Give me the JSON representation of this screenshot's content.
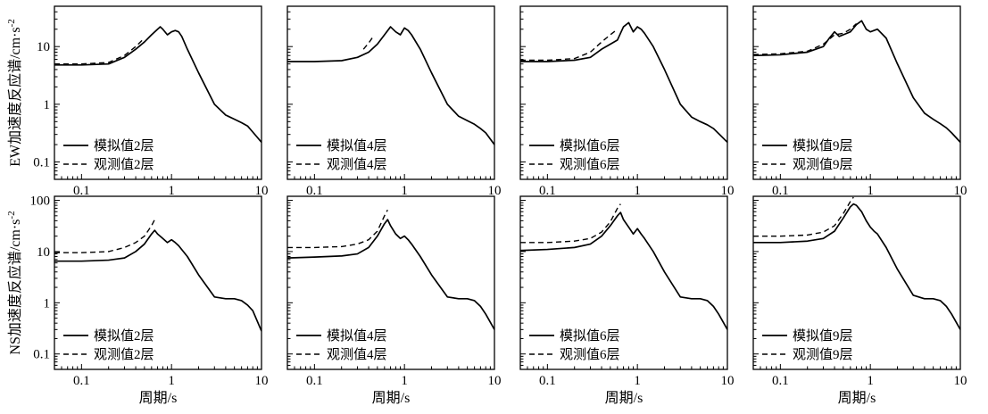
{
  "chart_data": {
    "type": "line",
    "x_scale": "log",
    "y_scale": "log",
    "xlim": [
      0.05,
      10
    ],
    "x_ticks": [
      {
        "value": 0.1,
        "label": "0.1"
      },
      {
        "value": 1,
        "label": "1"
      },
      {
        "value": 10,
        "label": "10"
      }
    ],
    "xlabel": "周期/s",
    "rows": [
      {
        "ylabel": "EW加速度反应谱/cm·s",
        "ylabel_sup": "-2",
        "ylim": [
          0.05,
          50
        ],
        "y_ticks": [
          {
            "value": 0.1,
            "label": "0.1"
          },
          {
            "value": 1,
            "label": "1"
          },
          {
            "value": 10,
            "label": "10"
          }
        ],
        "panels": [
          {
            "legend": [
              "模拟值2层",
              "观测值2层"
            ],
            "series": [
              {
                "name": "模拟值2层",
                "style": "solid",
                "x": [
                  0.05,
                  0.1,
                  0.2,
                  0.3,
                  0.4,
                  0.5,
                  0.6,
                  0.7,
                  0.75,
                  0.8,
                  0.9,
                  1.0,
                  1.1,
                  1.2,
                  1.3,
                  1.5,
                  2,
                  3,
                  4,
                  5,
                  6,
                  7,
                  8,
                  10
                ],
                "y": [
                  4.8,
                  4.8,
                  5.0,
                  6.5,
                  9.0,
                  12,
                  16,
                  20,
                  22,
                  20,
                  16,
                  18,
                  19,
                  18,
                  15,
                  9,
                  3.5,
                  1.0,
                  0.65,
                  0.55,
                  0.48,
                  0.42,
                  0.33,
                  0.22
                ]
              },
              {
                "name": "观测值2层",
                "style": "dashed",
                "x": [
                  0.05,
                  0.1,
                  0.2,
                  0.3,
                  0.4,
                  0.5
                ],
                "y": [
                  5.0,
                  5.0,
                  5.3,
                  7.0,
                  10,
                  14
                ]
              }
            ]
          },
          {
            "legend": [
              "模拟值4层",
              "观测值4层"
            ],
            "series": [
              {
                "name": "模拟值4层",
                "style": "solid",
                "x": [
                  0.05,
                  0.1,
                  0.2,
                  0.3,
                  0.4,
                  0.5,
                  0.6,
                  0.7,
                  0.8,
                  0.9,
                  1.0,
                  1.1,
                  1.2,
                  1.5,
                  2,
                  3,
                  4,
                  5,
                  6,
                  7,
                  8,
                  10
                ],
                "y": [
                  5.5,
                  5.5,
                  5.7,
                  6.5,
                  8.0,
                  11,
                  16,
                  22,
                  18,
                  16,
                  21,
                  19,
                  16,
                  9,
                  3.5,
                  1.0,
                  0.62,
                  0.52,
                  0.45,
                  0.38,
                  0.32,
                  0.2
                ]
              },
              {
                "name": "观测值4层",
                "style": "dashed",
                "x": [
                  0.35,
                  0.4,
                  0.45
                ],
                "y": [
                  9.0,
                  11.5,
                  15
                ]
              }
            ]
          },
          {
            "legend": [
              "模拟值6层",
              "观测值6层"
            ],
            "series": [
              {
                "name": "模拟值6层",
                "style": "solid",
                "x": [
                  0.05,
                  0.1,
                  0.2,
                  0.3,
                  0.4,
                  0.5,
                  0.6,
                  0.7,
                  0.8,
                  0.9,
                  1.0,
                  1.1,
                  1.2,
                  1.5,
                  2,
                  3,
                  4,
                  5,
                  6,
                  7,
                  8,
                  10
                ],
                "y": [
                  5.5,
                  5.5,
                  5.8,
                  6.5,
                  9.0,
                  11,
                  13,
                  22,
                  26,
                  18,
                  22,
                  20,
                  17,
                  10,
                  4.0,
                  1.0,
                  0.6,
                  0.5,
                  0.44,
                  0.38,
                  0.31,
                  0.22
                ]
              },
              {
                "name": "观测值6层",
                "style": "dashed",
                "x": [
                  0.05,
                  0.1,
                  0.2,
                  0.3,
                  0.4,
                  0.5,
                  0.6
                ],
                "y": [
                  5.8,
                  5.8,
                  6.2,
                  8.0,
                  12,
                  16,
                  20
                ]
              }
            ]
          },
          {
            "legend": [
              "模拟值9层",
              "观测值9层"
            ],
            "series": [
              {
                "name": "模拟值9层",
                "style": "solid",
                "x": [
                  0.05,
                  0.1,
                  0.2,
                  0.3,
                  0.35,
                  0.4,
                  0.45,
                  0.5,
                  0.6,
                  0.7,
                  0.8,
                  0.9,
                  1.0,
                  1.2,
                  1.5,
                  2,
                  3,
                  4,
                  5,
                  6,
                  7,
                  8,
                  10
                ],
                "y": [
                  7.0,
                  7.2,
                  8.0,
                  10,
                  14,
                  18,
                  15,
                  16,
                  18,
                  24,
                  28,
                  20,
                  18,
                  20,
                  14,
                  5.0,
                  1.3,
                  0.7,
                  0.55,
                  0.46,
                  0.39,
                  0.32,
                  0.22
                ]
              },
              {
                "name": "观测值9层",
                "style": "dashed",
                "x": [
                  0.05,
                  0.1,
                  0.2,
                  0.3,
                  0.4,
                  0.5,
                  0.6,
                  0.7
                ],
                "y": [
                  7.3,
                  7.5,
                  8.3,
                  11,
                  16,
                  17,
                  20,
                  25
                ]
              }
            ]
          }
        ]
      },
      {
        "ylabel": "NS加速度反应谱/cm·s",
        "ylabel_sup": "-2",
        "ylim": [
          0.05,
          120
        ],
        "y_ticks": [
          {
            "value": 0.1,
            "label": "0.1"
          },
          {
            "value": 1,
            "label": "1"
          },
          {
            "value": 10,
            "label": "10"
          },
          {
            "value": 100,
            "label": "100"
          }
        ],
        "panels": [
          {
            "legend": [
              "模拟值2层",
              "观测值2层"
            ],
            "series": [
              {
                "name": "模拟值2层",
                "style": "solid",
                "x": [
                  0.05,
                  0.1,
                  0.2,
                  0.3,
                  0.4,
                  0.5,
                  0.6,
                  0.65,
                  0.7,
                  0.8,
                  0.9,
                  1.0,
                  1.1,
                  1.2,
                  1.5,
                  2,
                  3,
                  4,
                  5,
                  6,
                  7,
                  8,
                  10
                ],
                "y": [
                  6.5,
                  6.5,
                  6.8,
                  7.5,
                  10,
                  14,
                  22,
                  26,
                  22,
                  18,
                  15,
                  17,
                  15,
                  13,
                  8,
                  3.5,
                  1.3,
                  1.2,
                  1.2,
                  1.1,
                  0.9,
                  0.7,
                  0.28
                ]
              },
              {
                "name": "观测值2层",
                "style": "dashed",
                "x": [
                  0.05,
                  0.1,
                  0.2,
                  0.3,
                  0.4,
                  0.5,
                  0.6,
                  0.65
                ],
                "y": [
                  9.5,
                  9.5,
                  10,
                  12,
                  15,
                  20,
                  32,
                  42
                ]
              }
            ]
          },
          {
            "legend": [
              "模拟值4层",
              "观测值4层"
            ],
            "series": [
              {
                "name": "模拟值4层",
                "style": "solid",
                "x": [
                  0.05,
                  0.1,
                  0.2,
                  0.3,
                  0.4,
                  0.5,
                  0.6,
                  0.65,
                  0.7,
                  0.8,
                  0.9,
                  1.0,
                  1.1,
                  1.2,
                  1.5,
                  2,
                  3,
                  4,
                  5,
                  6,
                  7,
                  8,
                  10
                ],
                "y": [
                  7.5,
                  7.8,
                  8.2,
                  9.0,
                  12,
                  20,
                  35,
                  42,
                  32,
                  22,
                  18,
                  20,
                  17,
                  14,
                  8,
                  3.5,
                  1.3,
                  1.2,
                  1.2,
                  1.1,
                  0.85,
                  0.6,
                  0.3
                ]
              },
              {
                "name": "观测值4层",
                "style": "dashed",
                "x": [
                  0.05,
                  0.1,
                  0.2,
                  0.3,
                  0.4,
                  0.5,
                  0.6,
                  0.65
                ],
                "y": [
                  12,
                  12,
                  12.5,
                  14,
                  17,
                  25,
                  50,
                  65
                ]
              }
            ]
          },
          {
            "legend": [
              "模拟值6层",
              "观测值6层"
            ],
            "series": [
              {
                "name": "模拟值6层",
                "style": "solid",
                "x": [
                  0.05,
                  0.1,
                  0.2,
                  0.3,
                  0.4,
                  0.5,
                  0.6,
                  0.65,
                  0.7,
                  0.8,
                  0.9,
                  1.0,
                  1.1,
                  1.2,
                  1.5,
                  2,
                  3,
                  4,
                  5,
                  6,
                  7,
                  8,
                  10
                ],
                "y": [
                  10.5,
                  11,
                  12,
                  14,
                  20,
                  32,
                  50,
                  58,
                  42,
                  30,
                  22,
                  28,
                  22,
                  18,
                  10,
                  4.0,
                  1.3,
                  1.2,
                  1.2,
                  1.1,
                  0.85,
                  0.6,
                  0.3
                ]
              },
              {
                "name": "观测值6层",
                "style": "dashed",
                "x": [
                  0.05,
                  0.1,
                  0.2,
                  0.3,
                  0.4,
                  0.5,
                  0.6,
                  0.65
                ],
                "y": [
                  15,
                  15,
                  16,
                  18,
                  24,
                  38,
                  70,
                  85
                ]
              }
            ]
          },
          {
            "legend": [
              "模拟值9层",
              "观测值9层"
            ],
            "series": [
              {
                "name": "模拟值9层",
                "style": "solid",
                "x": [
                  0.05,
                  0.1,
                  0.2,
                  0.3,
                  0.4,
                  0.5,
                  0.6,
                  0.65,
                  0.7,
                  0.8,
                  0.9,
                  1.0,
                  1.1,
                  1.2,
                  1.5,
                  2,
                  3,
                  4,
                  5,
                  6,
                  7,
                  8,
                  10
                ],
                "y": [
                  15,
                  15,
                  16,
                  18,
                  25,
                  45,
                  75,
                  85,
                  80,
                  60,
                  40,
                  30,
                  25,
                  22,
                  12,
                  4.5,
                  1.4,
                  1.2,
                  1.2,
                  1.1,
                  0.85,
                  0.6,
                  0.3
                ]
              },
              {
                "name": "观测值9层",
                "style": "dashed",
                "x": [
                  0.05,
                  0.1,
                  0.2,
                  0.3,
                  0.4,
                  0.5,
                  0.6,
                  0.65
                ],
                "y": [
                  20,
                  20,
                  21,
                  24,
                  32,
                  55,
                  95,
                  115
                ]
              }
            ]
          }
        ]
      }
    ]
  }
}
